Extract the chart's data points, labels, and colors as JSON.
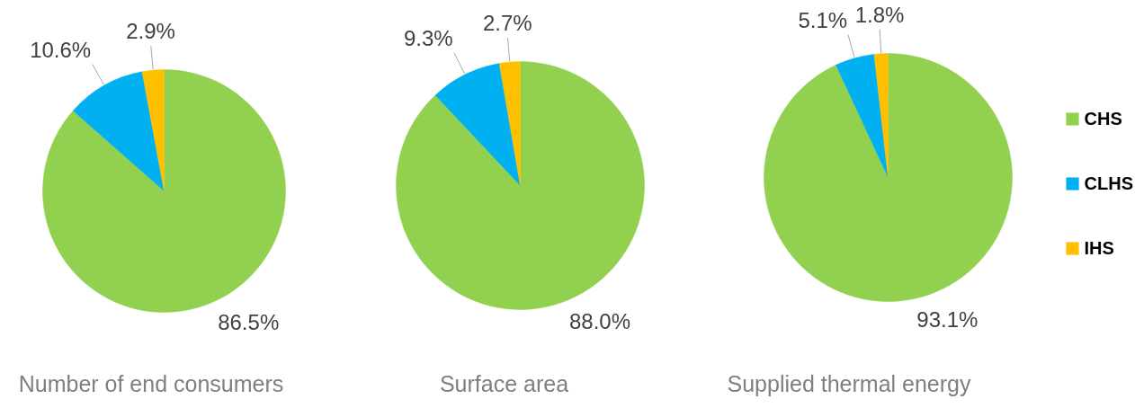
{
  "chart_data": [
    {
      "type": "pie",
      "title": "Number of end consumers",
      "categories": [
        "CHS",
        "CLHS",
        "IHS"
      ],
      "values": [
        86.5,
        10.6,
        2.9
      ],
      "colors": [
        "#92d050",
        "#00b0f0",
        "#ffc000"
      ],
      "value_labels": [
        "86.5%",
        "10.6%",
        "2.9%"
      ],
      "legend": "right"
    },
    {
      "type": "pie",
      "title": "Surface area",
      "values": [
        88.0,
        9.3,
        2.7
      ],
      "colors": [
        "#92d050",
        "#00b0f0",
        "#ffc000"
      ],
      "value_labels": [
        "88.0%",
        "9.3%",
        "2.7%"
      ]
    },
    {
      "type": "pie",
      "title": "Supplied thermal energy",
      "values": [
        93.1,
        5.1,
        1.8
      ],
      "colors": [
        "#92d050",
        "#00b0f0",
        "#ffc000"
      ],
      "value_labels": [
        "93.1%",
        "5.1%",
        "1.8%"
      ]
    }
  ]
}
